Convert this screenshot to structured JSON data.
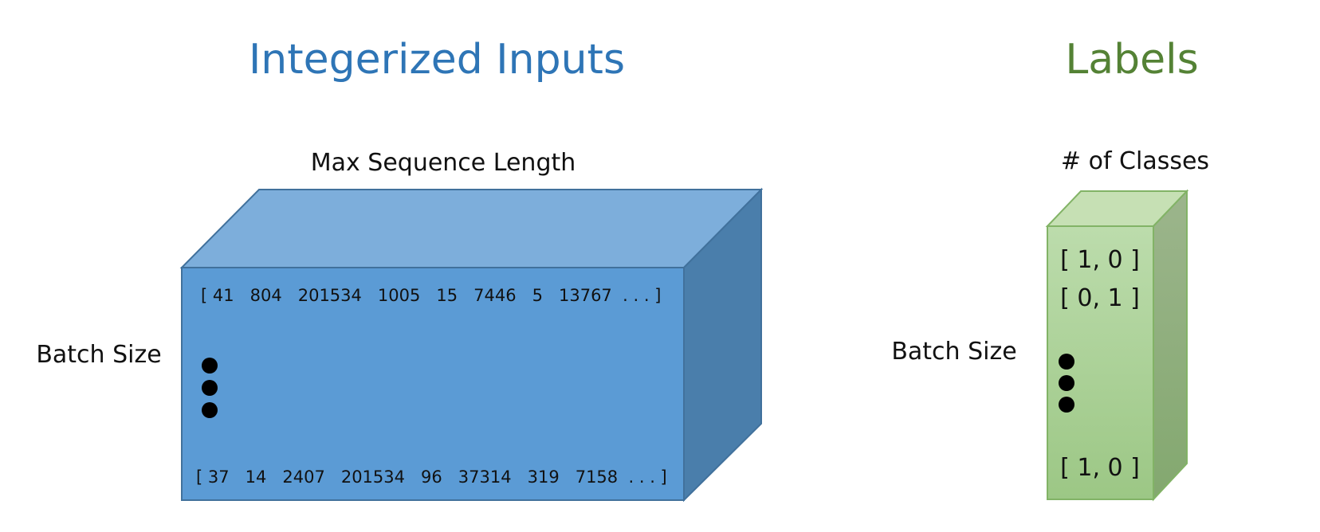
{
  "inputs": {
    "title": "Integerized Inputs",
    "title_color": "#2e75b6",
    "top_label": "Max Sequence Length",
    "side_label": "Batch Size",
    "first_row": "[ 41   804   201534   1005   15   7446   5   13767  . . . ]",
    "last_row": "[ 37   14   2407   201534   96   37314   319   7158  . . . ]",
    "colors": {
      "front": "#5b9bd5",
      "top": "#7daedb",
      "side": "#4a7eab",
      "edge": "#41719c"
    }
  },
  "labels": {
    "title": "Labels",
    "title_color": "#548235",
    "top_label": "# of Classes",
    "side_label": "Batch Size",
    "rows": [
      "[ 1, 0 ]",
      "[ 0, 1 ]",
      "[ 1, 0 ]"
    ],
    "colors": {
      "front_top": "#bcdcac",
      "front_bottom": "#9cc785",
      "top": "#c6e0b4",
      "side_top": "#9cb58c",
      "side_bottom": "#83a86f",
      "edge": "#82b366"
    }
  },
  "ellipsis_dot_color": "#000000"
}
